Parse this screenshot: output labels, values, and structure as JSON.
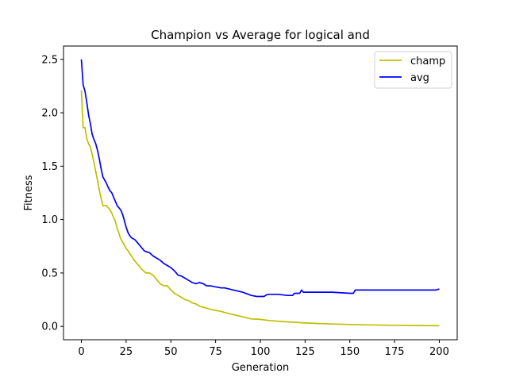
{
  "chart_data": {
    "type": "line",
    "title": "Champion vs Average for logical and",
    "xlabel": "Generation",
    "ylabel": "Fitness",
    "xlim": [
      -10,
      210
    ],
    "ylim": [
      -0.125,
      2.625
    ],
    "xticks": [
      0,
      25,
      50,
      75,
      100,
      125,
      150,
      175,
      200
    ],
    "yticks": [
      0.0,
      0.5,
      1.0,
      1.5,
      2.0,
      2.5
    ],
    "xtick_labels": [
      "0",
      "25",
      "50",
      "75",
      "100",
      "125",
      "150",
      "175",
      "200"
    ],
    "ytick_labels": [
      "0.0",
      "0.5",
      "1.0",
      "1.5",
      "2.0",
      "2.5"
    ],
    "grid": false,
    "legend_position": "top-right",
    "series": [
      {
        "name": "champ",
        "color": "#bfbf00",
        "points": [
          [
            0,
            2.21
          ],
          [
            1,
            1.86
          ],
          [
            2,
            1.86
          ],
          [
            3,
            1.76
          ],
          [
            4,
            1.71
          ],
          [
            5,
            1.68
          ],
          [
            6,
            1.61
          ],
          [
            7,
            1.54
          ],
          [
            8,
            1.45
          ],
          [
            9,
            1.37
          ],
          [
            10,
            1.28
          ],
          [
            11,
            1.2
          ],
          [
            12,
            1.13
          ],
          [
            13,
            1.13
          ],
          [
            14,
            1.13
          ],
          [
            15,
            1.11
          ],
          [
            16,
            1.09
          ],
          [
            17,
            1.06
          ],
          [
            18,
            1.02
          ],
          [
            19,
            0.98
          ],
          [
            20,
            0.92
          ],
          [
            21,
            0.87
          ],
          [
            22,
            0.82
          ],
          [
            23,
            0.79
          ],
          [
            24,
            0.76
          ],
          [
            25,
            0.73
          ],
          [
            26,
            0.71
          ],
          [
            27,
            0.68
          ],
          [
            28,
            0.66
          ],
          [
            29,
            0.63
          ],
          [
            30,
            0.61
          ],
          [
            32,
            0.57
          ],
          [
            34,
            0.53
          ],
          [
            36,
            0.5
          ],
          [
            38,
            0.5
          ],
          [
            40,
            0.48
          ],
          [
            42,
            0.44
          ],
          [
            44,
            0.4
          ],
          [
            46,
            0.38
          ],
          [
            48,
            0.38
          ],
          [
            50,
            0.34
          ],
          [
            52,
            0.31
          ],
          [
            54,
            0.29
          ],
          [
            56,
            0.27
          ],
          [
            58,
            0.25
          ],
          [
            60,
            0.24
          ],
          [
            62,
            0.22
          ],
          [
            64,
            0.21
          ],
          [
            66,
            0.19
          ],
          [
            68,
            0.18
          ],
          [
            70,
            0.17
          ],
          [
            72,
            0.16
          ],
          [
            75,
            0.15
          ],
          [
            78,
            0.14
          ],
          [
            80,
            0.13
          ],
          [
            85,
            0.11
          ],
          [
            90,
            0.09
          ],
          [
            95,
            0.07
          ],
          [
            100,
            0.065
          ],
          [
            105,
            0.055
          ],
          [
            110,
            0.048
          ],
          [
            115,
            0.042
          ],
          [
            120,
            0.038
          ],
          [
            125,
            0.032
          ],
          [
            130,
            0.028
          ],
          [
            140,
            0.022
          ],
          [
            150,
            0.018
          ],
          [
            160,
            0.014
          ],
          [
            175,
            0.01
          ],
          [
            185,
            0.008
          ],
          [
            200,
            0.006
          ]
        ]
      },
      {
        "name": "avg",
        "color": "#0000ff",
        "points": [
          [
            0,
            2.5
          ],
          [
            1,
            2.26
          ],
          [
            2,
            2.2
          ],
          [
            3,
            2.1
          ],
          [
            4,
            1.98
          ],
          [
            5,
            1.9
          ],
          [
            6,
            1.8
          ],
          [
            7,
            1.75
          ],
          [
            8,
            1.71
          ],
          [
            9,
            1.65
          ],
          [
            10,
            1.57
          ],
          [
            11,
            1.48
          ],
          [
            12,
            1.4
          ],
          [
            13,
            1.37
          ],
          [
            14,
            1.34
          ],
          [
            15,
            1.3
          ],
          [
            16,
            1.27
          ],
          [
            17,
            1.25
          ],
          [
            18,
            1.21
          ],
          [
            19,
            1.17
          ],
          [
            20,
            1.13
          ],
          [
            21,
            1.11
          ],
          [
            22,
            1.09
          ],
          [
            23,
            1.05
          ],
          [
            24,
            0.99
          ],
          [
            25,
            0.93
          ],
          [
            26,
            0.88
          ],
          [
            27,
            0.85
          ],
          [
            28,
            0.83
          ],
          [
            30,
            0.81
          ],
          [
            32,
            0.77
          ],
          [
            34,
            0.73
          ],
          [
            35,
            0.71
          ],
          [
            36,
            0.7
          ],
          [
            38,
            0.69
          ],
          [
            40,
            0.66
          ],
          [
            42,
            0.64
          ],
          [
            44,
            0.62
          ],
          [
            46,
            0.59
          ],
          [
            48,
            0.57
          ],
          [
            50,
            0.55
          ],
          [
            52,
            0.52
          ],
          [
            54,
            0.48
          ],
          [
            56,
            0.47
          ],
          [
            58,
            0.45
          ],
          [
            60,
            0.43
          ],
          [
            62,
            0.41
          ],
          [
            64,
            0.4
          ],
          [
            66,
            0.41
          ],
          [
            68,
            0.4
          ],
          [
            70,
            0.38
          ],
          [
            72,
            0.38
          ],
          [
            75,
            0.37
          ],
          [
            78,
            0.36
          ],
          [
            80,
            0.36
          ],
          [
            85,
            0.34
          ],
          [
            90,
            0.32
          ],
          [
            95,
            0.29
          ],
          [
            98,
            0.28
          ],
          [
            100,
            0.28
          ],
          [
            102,
            0.28
          ],
          [
            104,
            0.3
          ],
          [
            106,
            0.3
          ],
          [
            108,
            0.3
          ],
          [
            110,
            0.3
          ],
          [
            115,
            0.29
          ],
          [
            118,
            0.29
          ],
          [
            119,
            0.31
          ],
          [
            120,
            0.31
          ],
          [
            121,
            0.31
          ],
          [
            122,
            0.31
          ],
          [
            123,
            0.34
          ],
          [
            124,
            0.32
          ],
          [
            125,
            0.32
          ],
          [
            126,
            0.32
          ],
          [
            128,
            0.32
          ],
          [
            130,
            0.32
          ],
          [
            140,
            0.32
          ],
          [
            150,
            0.31
          ],
          [
            152,
            0.31
          ],
          [
            153,
            0.34
          ],
          [
            160,
            0.34
          ],
          [
            170,
            0.34
          ],
          [
            177,
            0.34
          ],
          [
            178,
            0.34
          ],
          [
            190,
            0.34
          ],
          [
            198,
            0.34
          ],
          [
            200,
            0.35
          ]
        ]
      }
    ]
  }
}
